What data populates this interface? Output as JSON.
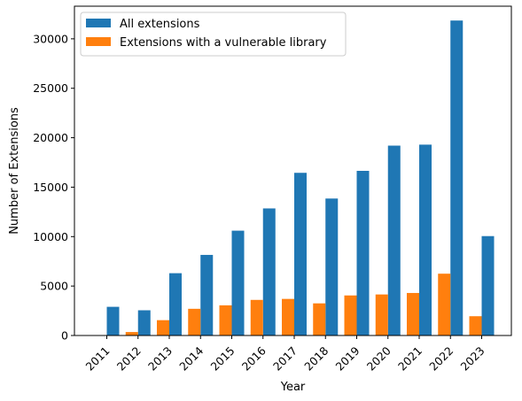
{
  "chart_data": {
    "type": "bar",
    "title": "",
    "xlabel": "Year",
    "ylabel": "Number of Extensions",
    "categories": [
      "2011",
      "2012",
      "2013",
      "2014",
      "2015",
      "2016",
      "2017",
      "2018",
      "2019",
      "2020",
      "2021",
      "2022",
      "2023"
    ],
    "series": [
      {
        "name": "All extensions",
        "color": "#1f77b4",
        "values": [
          2900,
          2550,
          6300,
          8150,
          10600,
          12850,
          16450,
          13850,
          16650,
          19200,
          19300,
          31850,
          10050
        ]
      },
      {
        "name": "Extensions with a vulnerable library",
        "color": "#ff7f0e",
        "values": [
          0,
          350,
          1550,
          2700,
          3050,
          3600,
          3700,
          3250,
          4050,
          4150,
          4300,
          6250,
          1950
        ]
      }
    ],
    "ylim": [
      0,
      33300
    ],
    "yticks": [
      0,
      5000,
      10000,
      15000,
      20000,
      25000,
      30000
    ],
    "grid": false,
    "legend_position": "top-left"
  }
}
